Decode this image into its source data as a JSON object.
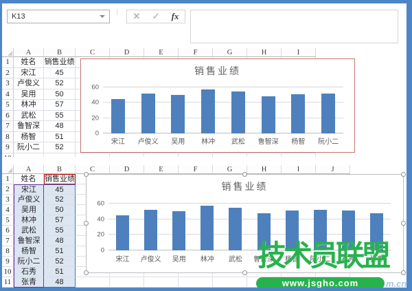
{
  "toolbar": {
    "name_box_value": "K13",
    "cancel_glyph": "✕",
    "enter_glyph": "✓",
    "fx_label": "fx",
    "dots_glyph": "⁞"
  },
  "colors": {
    "frame_blue": "#4d86c6",
    "bar_blue": "#4e80bd",
    "chart_border_red": "#c4736e",
    "range_purple": "#7030a0",
    "range_blue": "#4472c4",
    "range_red": "#c00000",
    "selection_fill": "#dce6f1",
    "watermark_green": "#28b24e"
  },
  "sheet_top": {
    "col_headers": [
      "A",
      "B",
      "C",
      "D",
      "E",
      "F",
      "G",
      "H",
      "I"
    ],
    "rows": [
      {
        "n": "1",
        "a": "姓名",
        "b": "销售业绩"
      },
      {
        "n": "2",
        "a": "宋江",
        "b": "45"
      },
      {
        "n": "3",
        "a": "卢俊义",
        "b": "52"
      },
      {
        "n": "4",
        "a": "吴用",
        "b": "50"
      },
      {
        "n": "5",
        "a": "林冲",
        "b": "57"
      },
      {
        "n": "6",
        "a": "武松",
        "b": "55"
      },
      {
        "n": "7",
        "a": "鲁智深",
        "b": "48"
      },
      {
        "n": "8",
        "a": "杨智",
        "b": "51"
      },
      {
        "n": "9",
        "a": "阮小二",
        "b": "52"
      },
      {
        "n": "10",
        "a": "",
        "b": ""
      }
    ]
  },
  "sheet_bottom": {
    "col_headers": [
      "A",
      "B",
      "C",
      "D",
      "E",
      "F",
      "G",
      "H",
      "I",
      "J"
    ],
    "rows": [
      {
        "n": "1",
        "a": "姓名",
        "b": "销售业绩"
      },
      {
        "n": "2",
        "a": "宋江",
        "b": "45"
      },
      {
        "n": "3",
        "a": "卢俊义",
        "b": "52"
      },
      {
        "n": "4",
        "a": "吴用",
        "b": "50"
      },
      {
        "n": "5",
        "a": "林冲",
        "b": "57"
      },
      {
        "n": "6",
        "a": "武松",
        "b": "55"
      },
      {
        "n": "7",
        "a": "鲁智深",
        "b": "48"
      },
      {
        "n": "8",
        "a": "杨智",
        "b": "51"
      },
      {
        "n": "9",
        "a": "阮小二",
        "b": "52"
      },
      {
        "n": "10",
        "a": "石秀",
        "b": "51"
      },
      {
        "n": "11",
        "a": "张青",
        "b": "48"
      }
    ]
  },
  "chart_data": [
    {
      "type": "bar",
      "title": "销售业绩",
      "categories": [
        "宋江",
        "卢俊义",
        "吴用",
        "林冲",
        "武松",
        "鲁智深",
        "杨智",
        "阮小二"
      ],
      "values": [
        45,
        52,
        50,
        57,
        55,
        48,
        51,
        52
      ],
      "xlabel": "",
      "ylabel": "",
      "ylim": [
        0,
        60
      ],
      "yticks": [
        0,
        20,
        40,
        60
      ],
      "grid": true,
      "legend": "none",
      "color": "#4e80bd"
    },
    {
      "type": "bar",
      "title": "销售业绩",
      "categories": [
        "宋江",
        "卢俊义",
        "吴用",
        "林冲",
        "武松",
        "鲁智深",
        "杨智",
        "阮小二",
        "石秀",
        "张青"
      ],
      "values": [
        45,
        52,
        50,
        57,
        55,
        48,
        51,
        52,
        51,
        48
      ],
      "xlabel": "",
      "ylabel": "",
      "ylim": [
        0,
        60
      ],
      "yticks": [
        0,
        20,
        40,
        60
      ],
      "grid": true,
      "legend": "none",
      "color": "#4e80bd"
    }
  ],
  "watermark": {
    "brand": "技术员联盟",
    "url": "www.jsgho.com",
    "suffix": "m.cn"
  }
}
